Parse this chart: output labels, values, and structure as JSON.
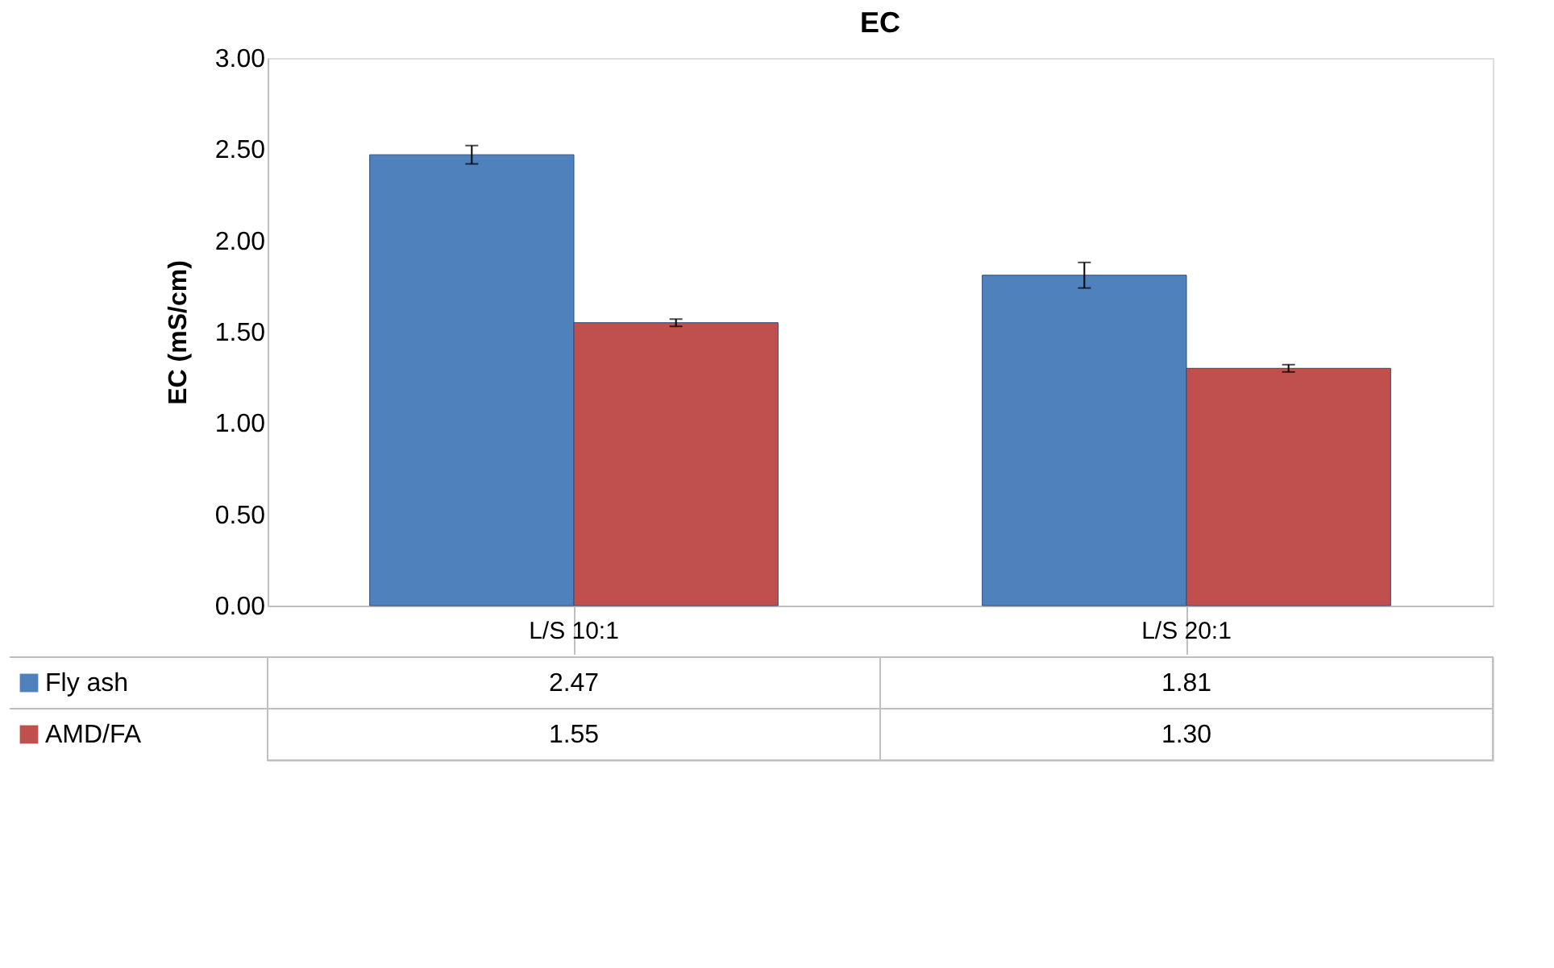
{
  "chart_data": {
    "type": "bar",
    "title": "EC",
    "ylabel": "EC (mS/cm)",
    "categories": [
      "L/S 10:1",
      "L/S 20:1"
    ],
    "series": [
      {
        "name": "Fly ash",
        "color": "#4f81bd",
        "values": [
          2.47,
          1.81
        ],
        "errors": [
          0.05,
          0.07
        ],
        "value_labels": [
          "2.47",
          "1.81"
        ]
      },
      {
        "name": "AMD/FA",
        "color": "#c0504d",
        "values": [
          1.55,
          1.3
        ],
        "errors": [
          0.02,
          0.02
        ],
        "value_labels": [
          "1.55",
          "1.30"
        ]
      }
    ],
    "ylim": [
      0,
      3
    ],
    "yticks": [
      {
        "value": 0,
        "label": "0.00"
      },
      {
        "value": 0.5,
        "label": "0.50"
      },
      {
        "value": 1,
        "label": "1.00"
      },
      {
        "value": 1.5,
        "label": "1.50"
      },
      {
        "value": 2,
        "label": "2.00"
      },
      {
        "value": 2.5,
        "label": "2.50"
      },
      {
        "value": 3,
        "label": "3.00"
      }
    ],
    "grid": false,
    "legend": "bottom"
  }
}
